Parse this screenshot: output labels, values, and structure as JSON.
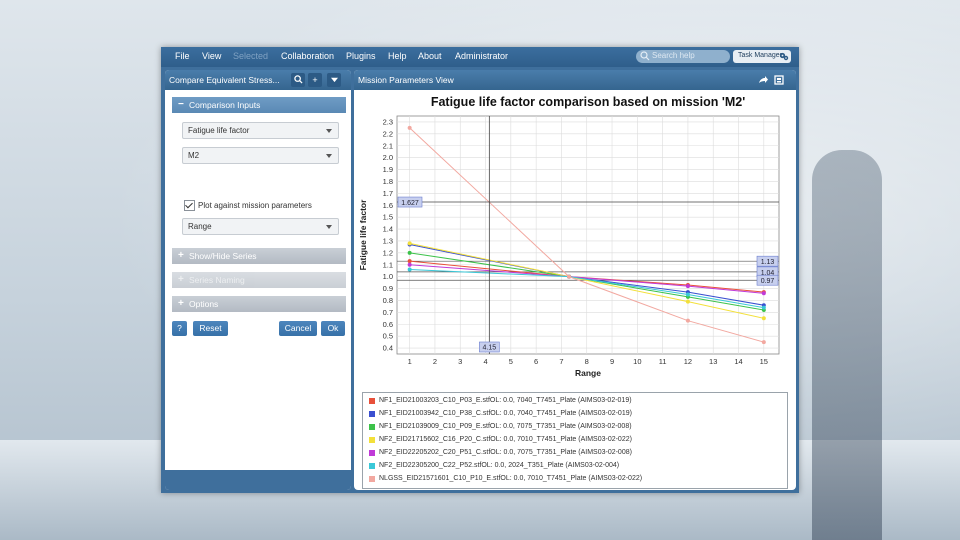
{
  "menubar": {
    "items": [
      "File",
      "View",
      "Selected",
      "Collaboration",
      "Plugins",
      "Help",
      "About",
      "Administrator"
    ],
    "search_placeholder": "Search help",
    "task_manager": "Task Manager"
  },
  "left_panel": {
    "title": "Compare Equivalent Stress...",
    "sections": {
      "comparison_inputs": "Comparison Inputs",
      "show_hide_series": "Show/Hide Series",
      "series_naming": "Series Naming",
      "options": "Options"
    },
    "fields": {
      "metric": "Fatigue life factor",
      "mission": "M2",
      "plot_against_label": "Plot against mission parameters",
      "plot_against_checked": true,
      "parameter": "Range"
    },
    "buttons": {
      "help": "?",
      "reset": "Reset",
      "cancel": "Cancel",
      "ok": "Ok"
    }
  },
  "right_panel": {
    "title": "Mission Parameters View"
  },
  "chart_data": {
    "type": "line",
    "title": "Fatigue life factor comparison based on mission 'M2'",
    "xlabel": "Range",
    "ylabel": "Fatigue life factor",
    "xlim": [
      0.5,
      15.6
    ],
    "ylim": [
      0.35,
      2.35
    ],
    "x_ticks": [
      1,
      2,
      3,
      4,
      5,
      6,
      7,
      8,
      9,
      10,
      11,
      12,
      13,
      14,
      15
    ],
    "y_ticks": [
      0.4,
      0.5,
      0.6,
      0.7,
      0.8,
      0.9,
      1.0,
      1.1,
      1.2,
      1.3,
      1.4,
      1.5,
      1.6,
      1.7,
      1.8,
      1.9,
      2.0,
      2.1,
      2.2,
      2.3
    ],
    "grid": true,
    "crosshair": {
      "x": 4.15,
      "y": 1.627,
      "x_label": "4.15",
      "y_label": "1.627"
    },
    "reference_lines": [
      {
        "y": 1.13,
        "label": "1.13"
      },
      {
        "y": 1.04,
        "label": "1.04"
      },
      {
        "y": 0.97,
        "label": "0.97"
      }
    ],
    "series": [
      {
        "name": "NF1_EID21003203_C10_P03_E.stfOL: 0.0, 7040_T7451_Plate (AIMS03-02-019)",
        "color": "#e8503a",
        "x": [
          1,
          7.3,
          12,
          15
        ],
        "y": [
          1.13,
          1.0,
          0.93,
          0.87
        ]
      },
      {
        "name": "NF1_EID21003942_C10_P38_C.stfOL: 0.0, 7040_T7451_Plate (AIMS03-02-019)",
        "color": "#3a4fd0",
        "x": [
          1,
          7.3,
          12,
          15
        ],
        "y": [
          1.27,
          1.0,
          0.87,
          0.76
        ]
      },
      {
        "name": "NF1_EID21039009_C10_P09_E.stfOL: 0.0, 7075_T7351_Plate (AIMS03-02-008)",
        "color": "#3cc24a",
        "x": [
          1,
          7.3,
          12,
          15
        ],
        "y": [
          1.2,
          1.0,
          0.83,
          0.72
        ]
      },
      {
        "name": "NF2_EID21715602_C16_P20_C.stfOL: 0.0, 7010_T7451_Plate (AIMS03-02-022)",
        "color": "#f3e03a",
        "x": [
          1,
          7.3,
          12,
          15
        ],
        "y": [
          1.28,
          1.0,
          0.79,
          0.65
        ]
      },
      {
        "name": "NF2_EID22205202_C20_P51_C.stfOL: 0.0, 7075_T7351_Plate (AIMS03-02-008)",
        "color": "#c03ad8",
        "x": [
          1,
          7.3,
          12,
          15
        ],
        "y": [
          1.1,
          1.0,
          0.92,
          0.86
        ]
      },
      {
        "name": "NF2_EID22305200_C22_P52.stfOL: 0.0, 2024_T351_Plate (AIMS03-02-004)",
        "color": "#3ac8d8",
        "x": [
          1,
          7.3,
          12,
          15
        ],
        "y": [
          1.06,
          1.0,
          0.85,
          0.74
        ]
      },
      {
        "name": "NLGSS_EID21571601_C10_P10_E.stfOL: 0.0, 7010_T7451_Plate (AIMS03-02-022)",
        "color": "#f2a8a0",
        "x": [
          1,
          7.3,
          12,
          15
        ],
        "y": [
          2.25,
          1.0,
          0.63,
          0.45
        ]
      }
    ]
  }
}
